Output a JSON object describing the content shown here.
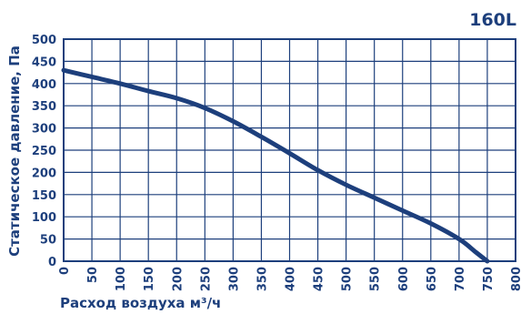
{
  "chart_data": {
    "type": "line",
    "model_label": "160L",
    "xlabel": "Расход воздуха м³/ч",
    "ylabel": "Статическое давление, Па",
    "xlim": [
      0,
      800
    ],
    "ylim": [
      0,
      500
    ],
    "x_ticks": [
      0,
      50,
      100,
      150,
      200,
      250,
      300,
      350,
      400,
      450,
      500,
      550,
      600,
      650,
      700,
      750,
      800
    ],
    "y_ticks": [
      0,
      50,
      100,
      150,
      200,
      250,
      300,
      350,
      400,
      450,
      500
    ],
    "grid": true,
    "colors": {
      "line": "#1d3f7c",
      "text": "#1d3f7c",
      "grid": "#1d3f7c"
    },
    "series": [
      {
        "points": [
          [
            0,
            430
          ],
          [
            50,
            415
          ],
          [
            100,
            400
          ],
          [
            150,
            383
          ],
          [
            200,
            367
          ],
          [
            250,
            345
          ],
          [
            300,
            315
          ],
          [
            350,
            280
          ],
          [
            400,
            243
          ],
          [
            450,
            205
          ],
          [
            500,
            172
          ],
          [
            550,
            143
          ],
          [
            600,
            114
          ],
          [
            650,
            85
          ],
          [
            700,
            50
          ],
          [
            730,
            20
          ],
          [
            750,
            0
          ]
        ]
      }
    ]
  }
}
